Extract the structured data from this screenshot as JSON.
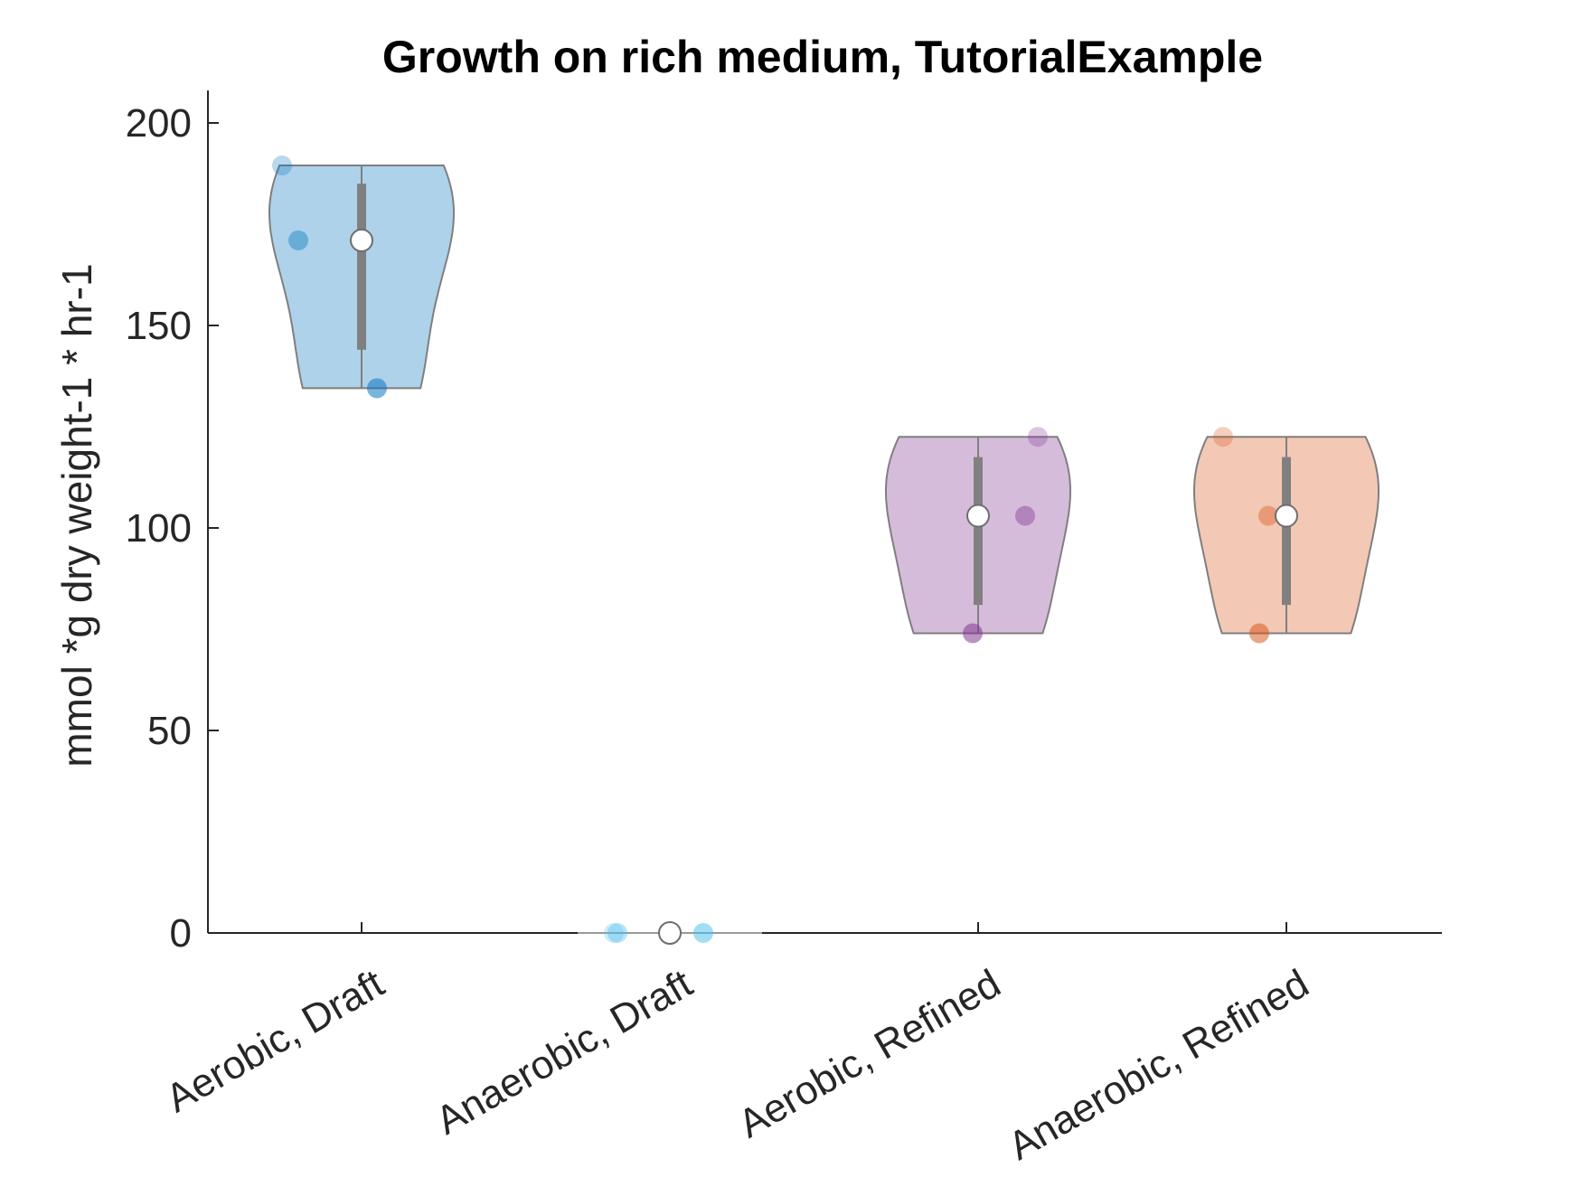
{
  "chart_data": {
    "type": "violin",
    "title": "Growth on rich medium, TutorialExample",
    "xlabel": "",
    "ylabel": "mmol *g dry weight-1 * hr-1",
    "ylim": [
      0,
      208
    ],
    "yticks": [
      0,
      50,
      100,
      150,
      200
    ],
    "grid": false,
    "categories": [
      "Aerobic, Draft",
      "Anaerobic, Draft",
      "Aerobic, Refined",
      "Anaerobic, Refined"
    ],
    "groups": [
      {
        "category": "Aerobic, Draft",
        "color": "#0072BD",
        "points": [
          189.5,
          171,
          134.5
        ],
        "median": 171,
        "q1": 144,
        "q3": 185,
        "min": 134.5,
        "max": 189.5
      },
      {
        "category": "Anaerobic, Draft",
        "color": "#4DBEEE",
        "points": [
          0,
          0,
          0
        ],
        "median": 0,
        "q1": 0,
        "q3": 0,
        "min": 0,
        "max": 0
      },
      {
        "category": "Aerobic, Refined",
        "color": "#7E2F8E",
        "points": [
          122.5,
          103,
          74
        ],
        "median": 103,
        "q1": 81,
        "q3": 117.5,
        "min": 74,
        "max": 122.5
      },
      {
        "category": "Anaerobic, Refined",
        "color": "#D95319",
        "points": [
          122.5,
          103,
          74
        ],
        "median": 103,
        "q1": 81,
        "q3": 117.5,
        "min": 74,
        "max": 122.5
      }
    ]
  }
}
